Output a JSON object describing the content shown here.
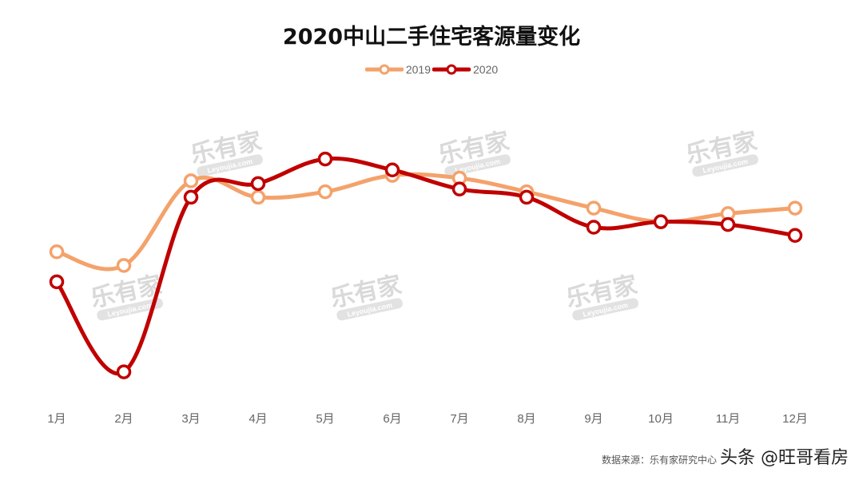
{
  "chart_data": {
    "type": "line",
    "title": "2020中山二手住宅客源量变化",
    "categories": [
      "1月",
      "2月",
      "3月",
      "4月",
      "5月",
      "6月",
      "7月",
      "8月",
      "9月",
      "10月",
      "11月",
      "12月"
    ],
    "series": [
      {
        "name": "2019",
        "color": "#f4a26b",
        "values": [
          57,
          52,
          83,
          77,
          79,
          85,
          84,
          79,
          73,
          68,
          71,
          73
        ]
      },
      {
        "name": "2020",
        "color": "#c00000",
        "values": [
          46,
          13,
          77,
          82,
          91,
          87,
          80,
          77,
          66,
          68,
          67,
          63
        ]
      }
    ],
    "xlabel": "",
    "ylabel": "",
    "ylim": [
      0,
      120
    ],
    "grid": false,
    "y_axis_visible": false,
    "legend_position": "top-center",
    "smooth": true,
    "note": "Y values are relative estimates; no y-axis shown"
  },
  "legend": {
    "items": [
      "2019",
      "2020"
    ]
  },
  "watermark": {
    "text": "乐有家",
    "sub": "Leyoujia.com"
  },
  "footer": {
    "source": "数据来源：乐有家研究中心",
    "credit": "头条 @旺哥看房"
  }
}
